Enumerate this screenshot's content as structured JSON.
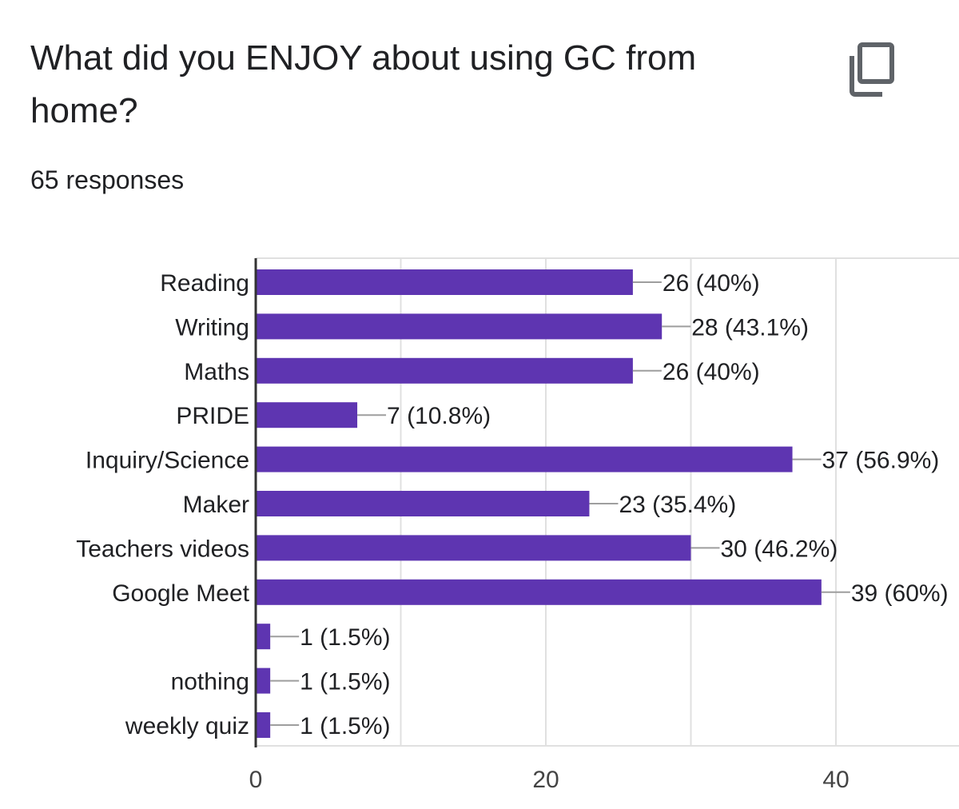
{
  "question": {
    "title": "What did you ENJOY about using GC from home?",
    "responses": "65 responses"
  },
  "icons": {
    "copy": "copy-icon"
  },
  "colors": {
    "bar": "#5e35b1",
    "grid": "#e0e0e0",
    "axis": "#333333",
    "leader": "#9e9e9e",
    "text": "#202124"
  },
  "chart_data": {
    "type": "bar",
    "orientation": "horizontal",
    "categories": [
      "Reading",
      "Writing",
      "Maths",
      "PRIDE",
      "Inquiry/Science",
      "Maker",
      "Teachers videos",
      "Google Meet",
      "",
      "nothing",
      "weekly quiz"
    ],
    "values": [
      26,
      28,
      26,
      7,
      37,
      23,
      30,
      39,
      1,
      1,
      1
    ],
    "data_labels": [
      "26 (40%)",
      "28 (43.1%)",
      "26 (40%)",
      "7 (10.8%)",
      "37 (56.9%)",
      "23 (35.4%)",
      "30 (46.2%)",
      "39 (60%)",
      "1 (1.5%)",
      "1 (1.5%)",
      "1 (1.5%)"
    ],
    "x_ticks": [
      0,
      20,
      40
    ],
    "xlim": [
      0,
      40
    ],
    "grid": true,
    "legend": "none"
  }
}
